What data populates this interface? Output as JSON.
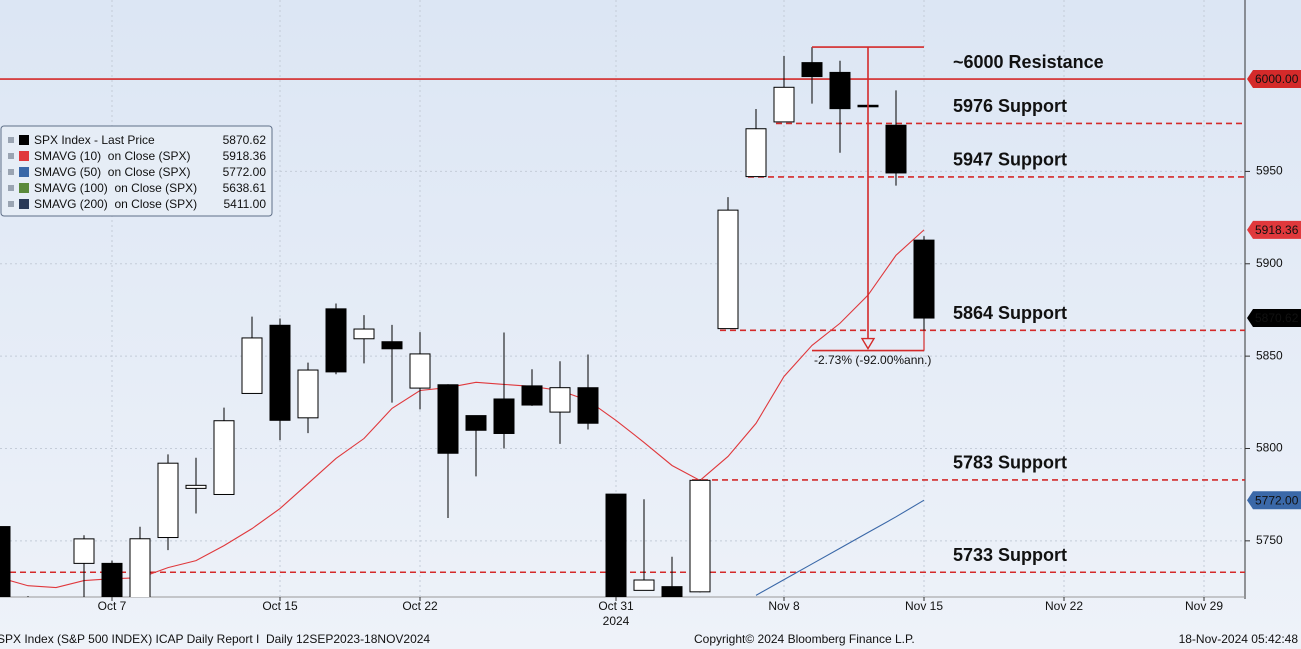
{
  "chart_data": {
    "type": "candlestick",
    "categories": [
      null,
      null,
      null,
      null,
      "Oct 7",
      null,
      null,
      null,
      null,
      null,
      "Oct 15",
      null,
      null,
      null,
      null,
      "Oct 22",
      null,
      null,
      null,
      null,
      null,
      null,
      "Oct 31",
      null,
      null,
      null,
      null,
      null,
      "Nov 8",
      null,
      null,
      null,
      null,
      "Nov 15",
      null,
      null,
      null,
      null,
      "Nov 22",
      null,
      null,
      null,
      null,
      "Nov 29"
    ],
    "year_label": "2024",
    "series": [
      {
        "name": "SPX Index - Last Price",
        "color": "#000000",
        "last_value": 5870.62,
        "open": [
          5757.73,
          5698.2,
          5698.2,
          5737.8,
          5737.8,
          5719.1,
          5751.8,
          5778.4,
          5775.1,
          5829.8,
          5866.7,
          5816.6,
          5875.6,
          5859.4,
          5857.8,
          5832.7,
          5834.5,
          5817.8,
          5826.8,
          5833.9,
          5819.7,
          5832.9,
          5775.3,
          5723.2,
          5725.2,
          5722.4,
          5864.9,
          5947.2,
          5976.8,
          6008.9,
          6003.6,
          5985.8,
          5975.0,
          5912.8,
          null,
          null,
          null,
          null,
          null,
          null,
          null,
          null,
          null,
          null
        ],
        "high": [
          5757.73,
          5720.1,
          5718.8,
          5753.0,
          5739.3,
          5757.6,
          5796.8,
          5795.0,
          5822.1,
          5871.4,
          5870.4,
          5846.5,
          5878.5,
          5872.2,
          5866.9,
          5863.0,
          5834.8,
          5817.8,
          5862.8,
          5842.9,
          5847.2,
          5850.9,
          5775.3,
          5772.5,
          5741.4,
          5783.4,
          5936.1,
          5983.8,
          6012.5,
          6017.3,
          6009.9,
          6008.2,
          5993.9,
          5915.0,
          null,
          null,
          null,
          null,
          null,
          null,
          null,
          null,
          null,
          null
        ],
        "low": [
          5681.28,
          5674.0,
          5677.5,
          5702.8,
          5683.0,
          5714.6,
          5745.0,
          5764.8,
          5775.1,
          5829.8,
          5804.5,
          5808.3,
          5840.2,
          5846.1,
          5824.8,
          5821.2,
          5762.4,
          5784.9,
          5800.0,
          5823.1,
          5802.5,
          5810.3,
          5702.9,
          5723.2,
          5696.5,
          5722.1,
          5864.9,
          5947.2,
          5976.8,
          5986.7,
          5960.1,
          5965.9,
          5942.3,
          5853.0,
          null,
          null,
          null,
          null,
          null,
          null,
          null,
          null,
          null,
          null
        ],
        "close": [
          5708.75,
          5709.54,
          5699.94,
          5751.07,
          5695.94,
          5751.13,
          5792.04,
          5780.05,
          5815.03,
          5859.85,
          5815.26,
          5842.47,
          5841.47,
          5864.67,
          5853.98,
          5851.2,
          5797.42,
          5809.86,
          5808.12,
          5823.52,
          5832.92,
          5813.67,
          5705.45,
          5728.8,
          5712.69,
          5782.76,
          5929.04,
          5973.1,
          5995.54,
          6001.35,
          5983.99,
          5985.38,
          5949.17,
          5870.62,
          null,
          null,
          null,
          null,
          null,
          null,
          null,
          null,
          null,
          null
        ]
      },
      {
        "name": "SMAVG (10)  on Close (SPX)",
        "color": "#e0383c",
        "last_value": 5918.36,
        "values": [
          5730,
          5725.7,
          5724.7,
          5728.5,
          5729.5,
          5730,
          5735.5,
          5739.3,
          5747.4,
          5756.6,
          5767.5,
          5781,
          5794.6,
          5805.4,
          5821.7,
          5831.4,
          5833,
          5835.8,
          5834.7,
          5833.6,
          5831.4,
          5826,
          5815.2,
          5803.3,
          5790.8,
          5782.7,
          5795.7,
          5813.6,
          5839,
          5855.8,
          5867.8,
          5883,
          5904.6,
          5918.36,
          null,
          null,
          null,
          null,
          null,
          null,
          null,
          null,
          null,
          null
        ]
      },
      {
        "name": "SMAVG (50)  on Close (SPX)",
        "color": "#3a68a8",
        "last_value": 5772,
        "last_label": "5772.00",
        "values": [
          null,
          null,
          null,
          null,
          null,
          null,
          null,
          null,
          null,
          null,
          null,
          null,
          null,
          null,
          null,
          null,
          null,
          null,
          null,
          null,
          null,
          null,
          null,
          null,
          null,
          null,
          null,
          5720.5,
          5729,
          5737.5,
          5746,
          5754.5,
          5763,
          5772,
          null,
          null,
          null,
          null,
          null,
          null,
          null,
          null,
          null,
          null
        ]
      },
      {
        "name": "SMAVG (100)  on Close (SPX)",
        "color": "#5b8a3c",
        "last_value": 5638.61
      },
      {
        "name": "SMAVG (200)  on Close (SPX)",
        "color": "#2a3a58",
        "last_value": 5411,
        "last_label": "5411.00"
      }
    ],
    "ylim": [
      5719.6,
      6042.8
    ],
    "yticks": [
      5750,
      5800,
      5850,
      5900,
      5950
    ],
    "grid": true,
    "legend": "top-left",
    "levels": [
      {
        "value": 6000,
        "label": "~6000 Resistance",
        "style": "solid",
        "color": "#d42a2a",
        "tag": "6000.00"
      },
      {
        "value": 5976,
        "label": "5976 Support",
        "style": "dashed",
        "color": "#d42a2a"
      },
      {
        "value": 5947,
        "label": "5947 Support",
        "style": "dashed",
        "color": "#d42a2a"
      },
      {
        "value": 5864,
        "label": "5864 Support",
        "style": "dashed",
        "color": "#d42a2a"
      },
      {
        "value": 5783,
        "label": "5783 Support",
        "style": "dashed",
        "color": "#d42a2a"
      },
      {
        "value": 5733,
        "label": "5733 Support",
        "style": "dashed",
        "color": "#d42a2a"
      }
    ],
    "measure": {
      "from": 6017.3,
      "to": 5853.0,
      "label": "-2.73% (-92.00%ann.)",
      "color": "#d42a2a"
    },
    "footer": {
      "left": "SPX Index (S&P 500 INDEX) ICAP Daily Report I  Daily 12SEP2023-18NOV2024",
      "center": "Copyright© 2024 Bloomberg Finance L.P.",
      "right": "18-Nov-2024 05:42:48"
    }
  }
}
